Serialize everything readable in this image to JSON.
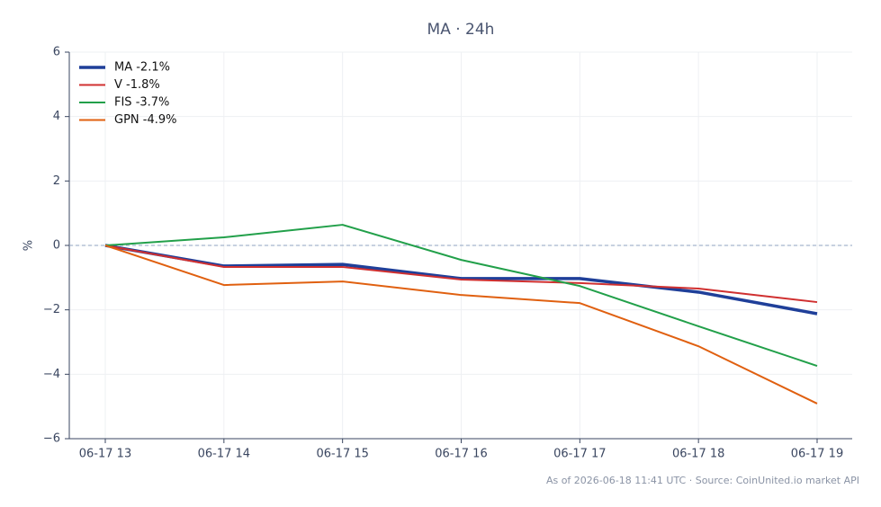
{
  "chart_data": {
    "type": "line",
    "title": "MA · 24h",
    "y_label": "%",
    "categories": [
      "06-17 13",
      "06-17 14",
      "06-17 15",
      "06-17 16",
      "06-17 17",
      "06-17 18",
      "06-17 19"
    ],
    "series": [
      {
        "name": "MA -2.1%",
        "color": "#1f3f99",
        "width": 3.5,
        "values": [
          0,
          -0.64,
          -0.59,
          -1.03,
          -1.03,
          -1.45,
          -2.12
        ]
      },
      {
        "name": "V -1.8%",
        "color": "#d03030",
        "width": 2,
        "values": [
          0,
          -0.67,
          -0.67,
          -1.06,
          -1.17,
          -1.34,
          -1.76
        ]
      },
      {
        "name": "FIS -3.7%",
        "color": "#22a04a",
        "width": 2,
        "values": [
          0,
          0.25,
          0.64,
          -0.45,
          -1.26,
          -2.51,
          -3.74
        ]
      },
      {
        "name": "GPN -4.9%",
        "color": "#e06010",
        "width": 2,
        "values": [
          0,
          -1.23,
          -1.12,
          -1.54,
          -1.79,
          -3.13,
          -4.91
        ]
      }
    ],
    "ylim": [
      -6,
      6
    ],
    "yticks": [
      {
        "value": -6,
        "label": "−6"
      },
      {
        "value": -4,
        "label": "−4"
      },
      {
        "value": -2,
        "label": "−2"
      },
      0,
      2,
      4,
      6
    ],
    "reference_line": 0,
    "grid": true,
    "legend": "upper-left",
    "footnote": "As of 2026-06-18 11:41 UTC · Source: CoinUnited.io market API"
  }
}
